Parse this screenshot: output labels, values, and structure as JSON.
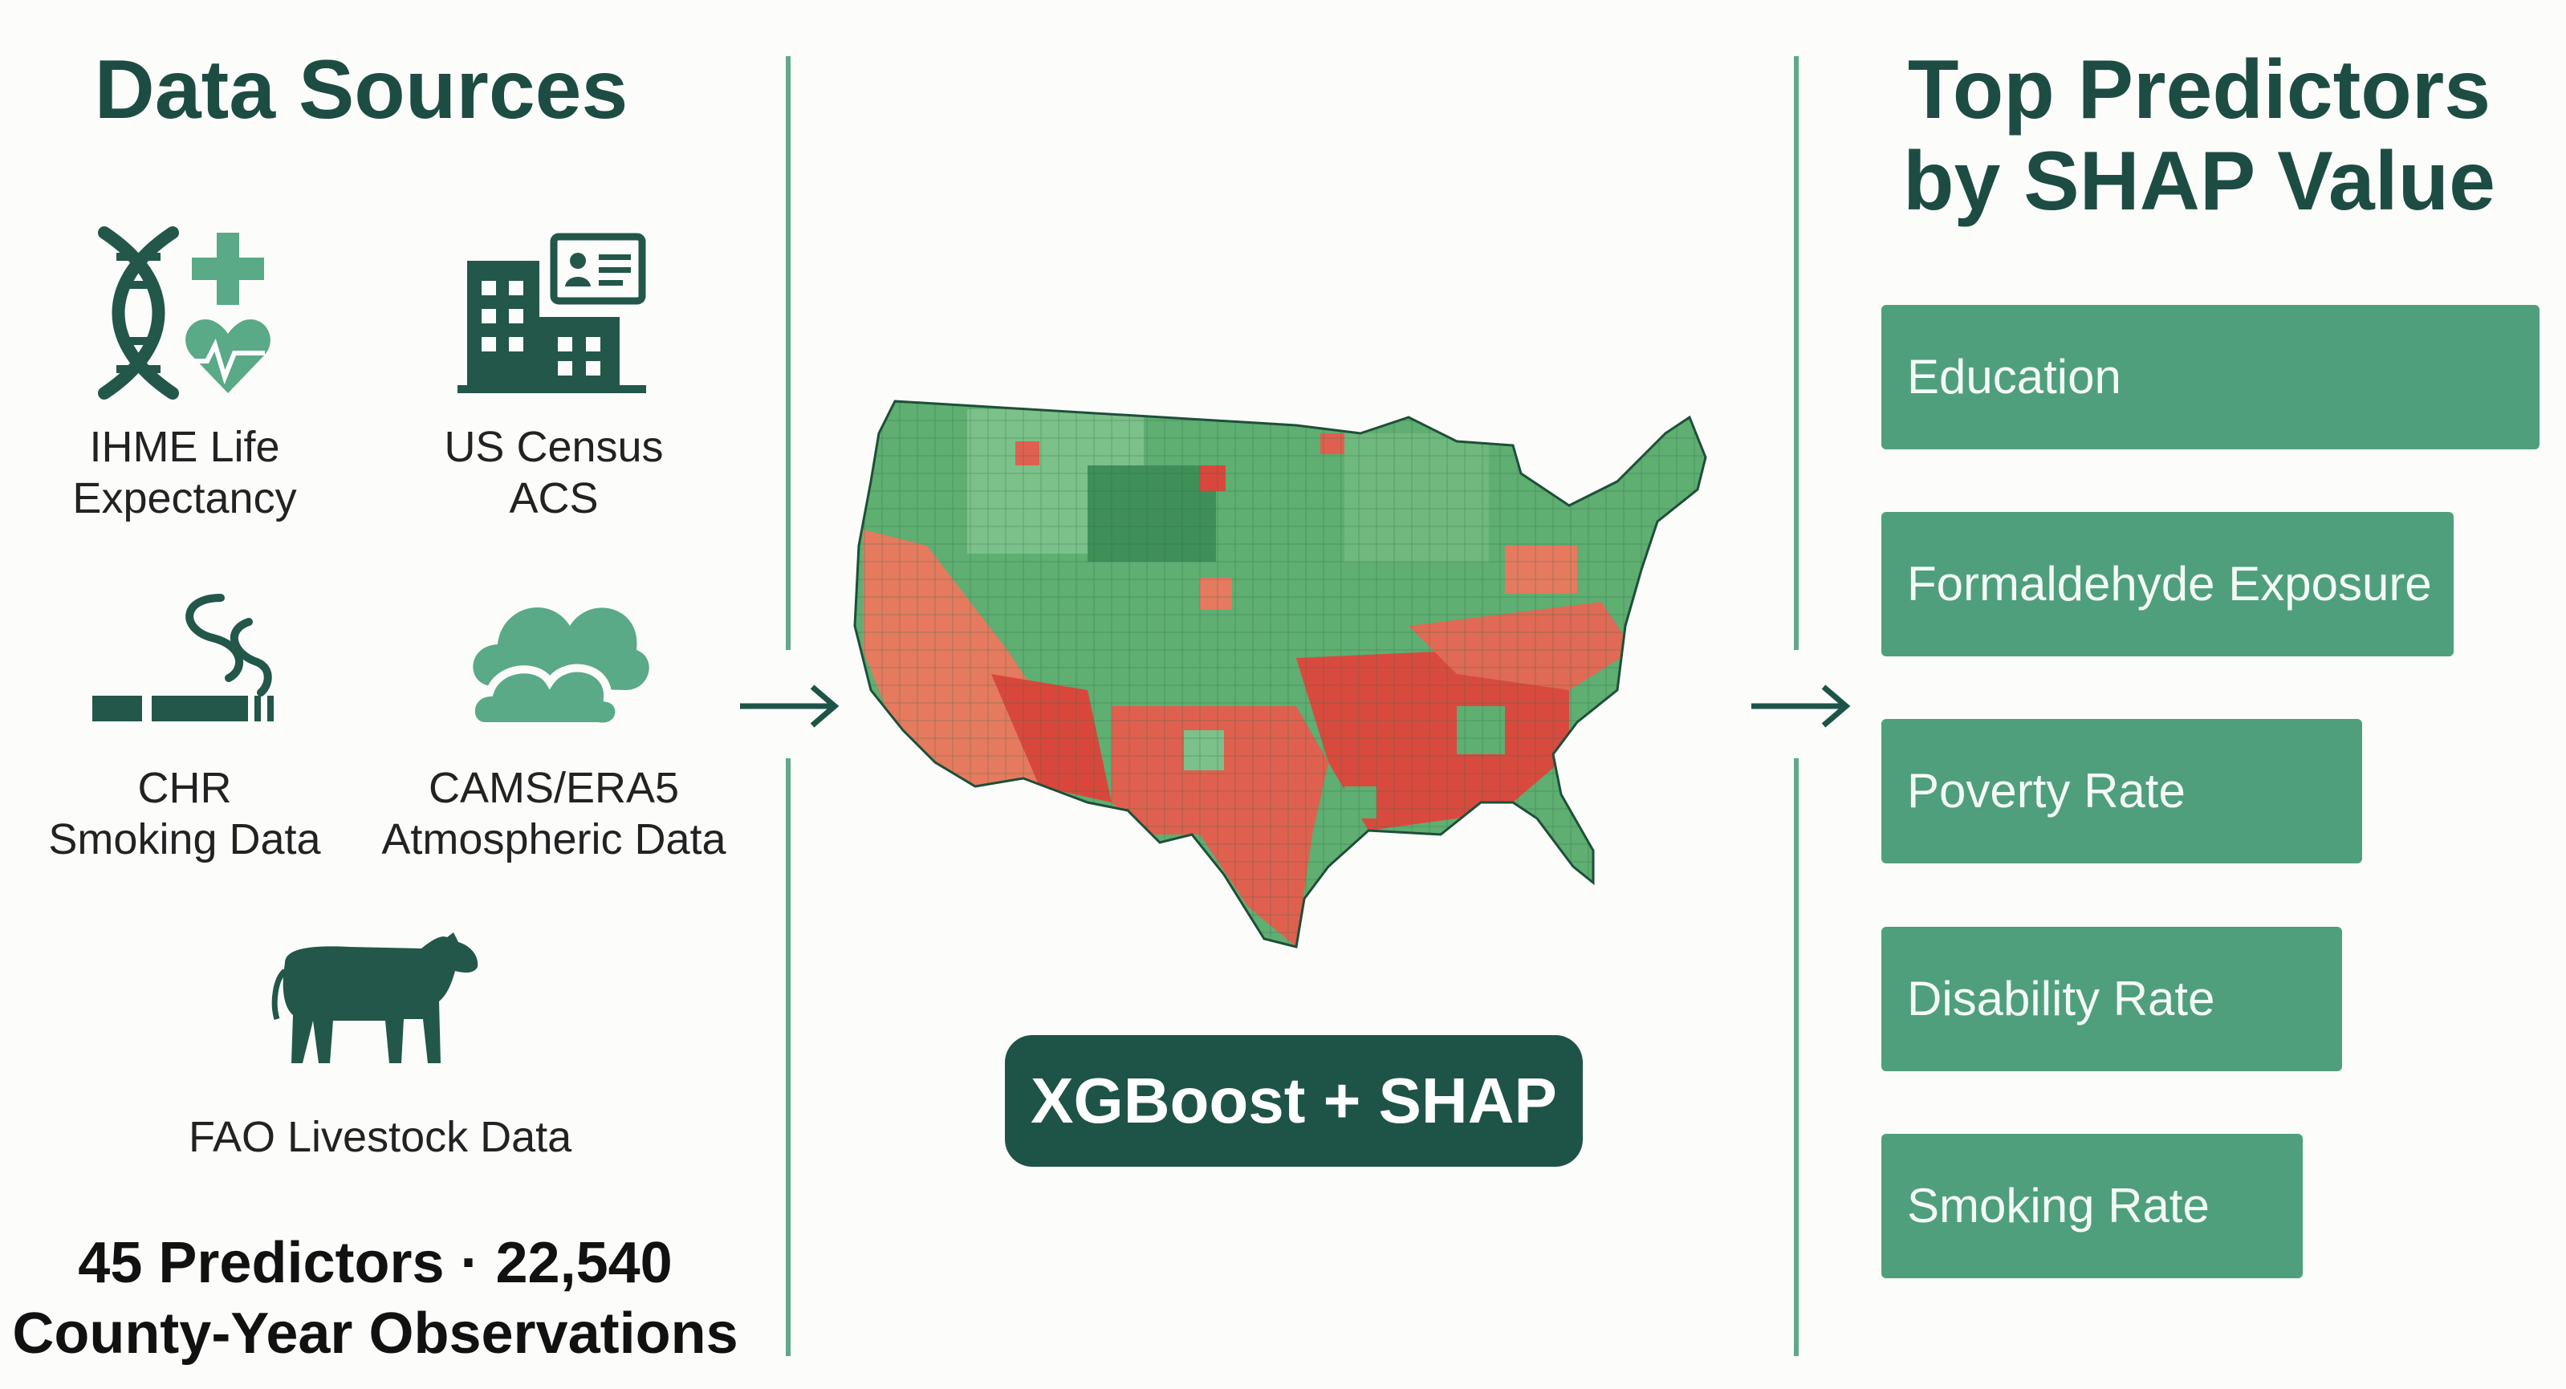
{
  "left": {
    "title": "Data Sources",
    "sources": [
      {
        "line1": "IHME Life",
        "line2": "Expectancy",
        "icon": "dna-health-icon"
      },
      {
        "line1": "US Census",
        "line2": "ACS",
        "icon": "building-id-card-icon"
      },
      {
        "line1": "CHR",
        "line2": "Smoking Data",
        "icon": "cigarette-icon"
      },
      {
        "line1": "CAMS/ERA5",
        "line2": "Atmospheric Data",
        "icon": "cloud-icon"
      },
      {
        "line1": "FAO Livestock Data",
        "line2": "",
        "icon": "cow-icon"
      }
    ],
    "footer_line1": "45 Predictors · 22,540",
    "footer_line2": "County-Year Observations"
  },
  "center": {
    "map_icon": "us-county-choropleth-map",
    "model_label": "XGBoost + SHAP"
  },
  "right": {
    "title_line1": "Top Predictors",
    "title_line2": "by SHAP Value",
    "predictors": [
      {
        "label": "Education",
        "value": 1.0
      },
      {
        "label": "Formaldehyde Exposure",
        "value": 0.87
      },
      {
        "label": "Poverty Rate",
        "value": 0.73
      },
      {
        "label": "Disability Rate",
        "value": 0.7
      },
      {
        "label": "Smoking Rate",
        "value": 0.64
      }
    ]
  },
  "colors": {
    "title": "#1d4c43",
    "icon_dark": "#22574a",
    "icon_light": "#5aa987",
    "bar": "#4f9f7c",
    "model_box": "#1d5447",
    "map_green": "#5fae72",
    "map_red": "#e0544a"
  }
}
